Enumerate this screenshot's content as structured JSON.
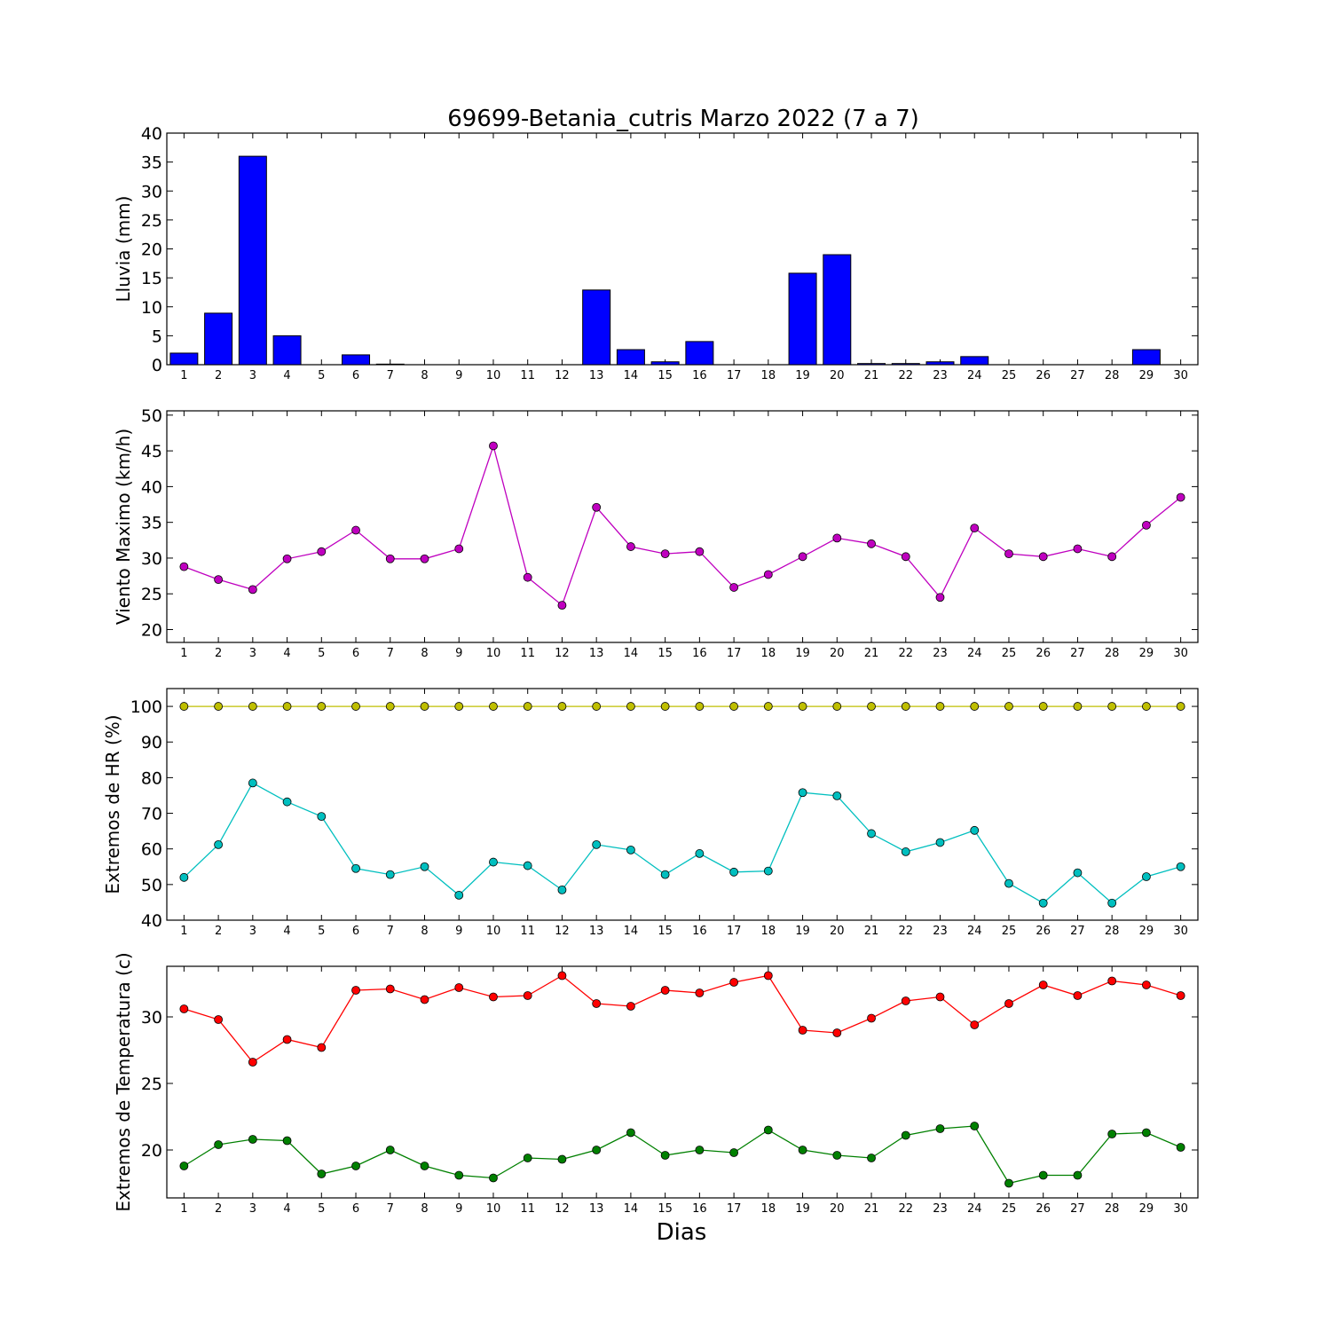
{
  "figure": {
    "title": "69699-Betania_cutris Marzo 2022  (7 a 7)",
    "xlabel": "Dias"
  },
  "chart_data": [
    {
      "type": "bar",
      "ylabel": "Lluvia (mm)",
      "x": [
        1,
        2,
        3,
        4,
        5,
        6,
        7,
        8,
        9,
        10,
        11,
        12,
        13,
        14,
        15,
        16,
        17,
        18,
        19,
        20,
        21,
        22,
        23,
        24,
        25,
        26,
        27,
        28,
        29,
        30
      ],
      "ylim": [
        0,
        40
      ],
      "yticks": [
        0,
        5,
        10,
        15,
        20,
        25,
        30,
        35,
        40
      ],
      "grid": false,
      "series": [
        {
          "color": "#0000ff",
          "values": [
            2.0,
            8.9,
            36.0,
            5.0,
            0.0,
            1.7,
            0.1,
            0.0,
            0.0,
            0.0,
            0.0,
            0.0,
            12.9,
            2.6,
            0.5,
            4.0,
            0.0,
            0.0,
            15.8,
            19.0,
            0.2,
            0.2,
            0.5,
            1.4,
            0.0,
            0.0,
            0.0,
            0.0,
            2.6,
            0.0
          ]
        }
      ]
    },
    {
      "type": "line",
      "ylabel": "Viento Maximo (km/h)",
      "x": [
        1,
        2,
        3,
        4,
        5,
        6,
        7,
        8,
        9,
        10,
        11,
        12,
        13,
        14,
        15,
        16,
        17,
        18,
        19,
        20,
        21,
        22,
        23,
        24,
        25,
        26,
        27,
        28,
        29,
        30
      ],
      "ylim": [
        18.2,
        50.6
      ],
      "yticks": [
        20,
        25,
        30,
        35,
        40,
        45,
        50
      ],
      "grid": false,
      "series": [
        {
          "color": "#bf00bf",
          "values": [
            28.8,
            27.0,
            25.6,
            29.9,
            30.9,
            33.9,
            29.9,
            29.9,
            31.3,
            45.7,
            27.3,
            23.4,
            37.1,
            31.6,
            30.6,
            30.9,
            25.9,
            27.7,
            30.2,
            32.8,
            32.0,
            30.2,
            24.5,
            34.2,
            30.6,
            30.2,
            31.3,
            30.2,
            34.6,
            38.5
          ]
        }
      ]
    },
    {
      "type": "line",
      "ylabel": "Extremos de HR (%)",
      "x": [
        1,
        2,
        3,
        4,
        5,
        6,
        7,
        8,
        9,
        10,
        11,
        12,
        13,
        14,
        15,
        16,
        17,
        18,
        19,
        20,
        21,
        22,
        23,
        24,
        25,
        26,
        27,
        28,
        29,
        30
      ],
      "ylim": [
        40,
        105
      ],
      "yticks": [
        40,
        50,
        60,
        70,
        80,
        90,
        100
      ],
      "grid": false,
      "series": [
        {
          "color": "#bfbf00",
          "values": [
            100,
            100,
            100,
            100,
            100,
            100,
            100,
            100,
            100,
            100,
            100,
            100,
            100,
            100,
            100,
            100,
            100,
            100,
            100,
            100,
            100,
            100,
            100,
            100,
            100,
            100,
            100,
            100,
            100,
            100
          ]
        },
        {
          "color": "#00bfbf",
          "values": [
            52.0,
            61.2,
            78.5,
            73.2,
            69.1,
            54.5,
            52.8,
            55.0,
            47.0,
            56.3,
            55.3,
            48.5,
            61.2,
            59.7,
            52.8,
            58.7,
            53.5,
            53.8,
            75.8,
            74.9,
            64.3,
            59.2,
            61.8,
            65.2,
            50.3,
            44.8,
            53.3,
            44.8,
            52.2,
            55.0
          ]
        }
      ]
    },
    {
      "type": "line",
      "ylabel": "Extremos de Temperatura (c)",
      "x": [
        1,
        2,
        3,
        4,
        5,
        6,
        7,
        8,
        9,
        10,
        11,
        12,
        13,
        14,
        15,
        16,
        17,
        18,
        19,
        20,
        21,
        22,
        23,
        24,
        25,
        26,
        27,
        28,
        29,
        30
      ],
      "ylim": [
        16.4,
        33.8
      ],
      "yticks": [
        20,
        25,
        30
      ],
      "grid": false,
      "series": [
        {
          "color": "#ff0000",
          "values": [
            30.6,
            29.8,
            26.6,
            28.3,
            27.7,
            32.0,
            32.1,
            31.3,
            32.2,
            31.5,
            31.6,
            33.1,
            31.0,
            30.8,
            32.0,
            31.8,
            32.6,
            33.1,
            29.0,
            28.8,
            29.9,
            31.2,
            31.5,
            29.4,
            31.0,
            32.4,
            31.6,
            32.7,
            32.4,
            31.6
          ]
        },
        {
          "color": "#008000",
          "values": [
            18.8,
            20.4,
            20.8,
            20.7,
            18.2,
            18.8,
            20.0,
            18.8,
            18.1,
            17.9,
            19.4,
            19.3,
            20.0,
            21.3,
            19.6,
            20.0,
            19.8,
            21.5,
            20.0,
            19.6,
            19.4,
            21.1,
            21.6,
            21.8,
            17.5,
            18.1,
            18.1,
            21.2,
            21.3,
            20.2
          ]
        }
      ]
    }
  ]
}
